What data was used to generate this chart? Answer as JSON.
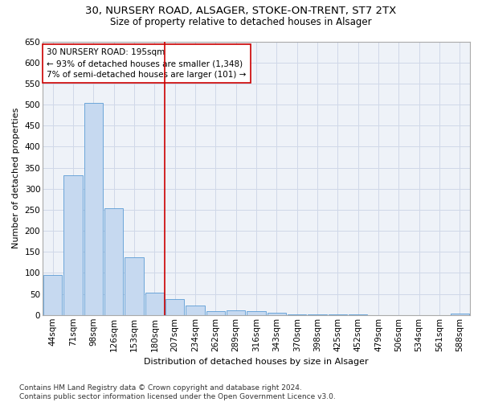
{
  "title_line1": "30, NURSERY ROAD, ALSAGER, STOKE-ON-TRENT, ST7 2TX",
  "title_line2": "Size of property relative to detached houses in Alsager",
  "xlabel": "Distribution of detached houses by size in Alsager",
  "ylabel": "Number of detached properties",
  "categories": [
    "44sqm",
    "71sqm",
    "98sqm",
    "126sqm",
    "153sqm",
    "180sqm",
    "207sqm",
    "234sqm",
    "262sqm",
    "289sqm",
    "316sqm",
    "343sqm",
    "370sqm",
    "398sqm",
    "425sqm",
    "452sqm",
    "479sqm",
    "506sqm",
    "534sqm",
    "561sqm",
    "588sqm"
  ],
  "values": [
    95,
    332,
    503,
    253,
    137,
    53,
    37,
    22,
    10,
    11,
    10,
    5,
    2,
    1,
    1,
    1,
    0,
    0,
    0,
    0,
    4
  ],
  "bar_color": "#c6d9f0",
  "bar_edge_color": "#5b9bd5",
  "vline_x": 5.5,
  "vline_color": "#cc0000",
  "annotation_line1": "30 NURSERY ROAD: 195sqm",
  "annotation_line2": "← 93% of detached houses are smaller (1,348)",
  "annotation_line3": "7% of semi-detached houses are larger (101) →",
  "annotation_box_color": "#ffffff",
  "annotation_box_edge": "#cc0000",
  "ylim": [
    0,
    650
  ],
  "yticks": [
    0,
    50,
    100,
    150,
    200,
    250,
    300,
    350,
    400,
    450,
    500,
    550,
    600,
    650
  ],
  "grid_color": "#d0d8e8",
  "footnote": "Contains HM Land Registry data © Crown copyright and database right 2024.\nContains public sector information licensed under the Open Government Licence v3.0.",
  "title_fontsize": 9.5,
  "subtitle_fontsize": 8.5,
  "axis_label_fontsize": 8,
  "tick_fontsize": 7.5,
  "annotation_fontsize": 7.5,
  "footnote_fontsize": 6.5,
  "bg_color": "#ffffff",
  "plot_bg_color": "#eef2f8"
}
